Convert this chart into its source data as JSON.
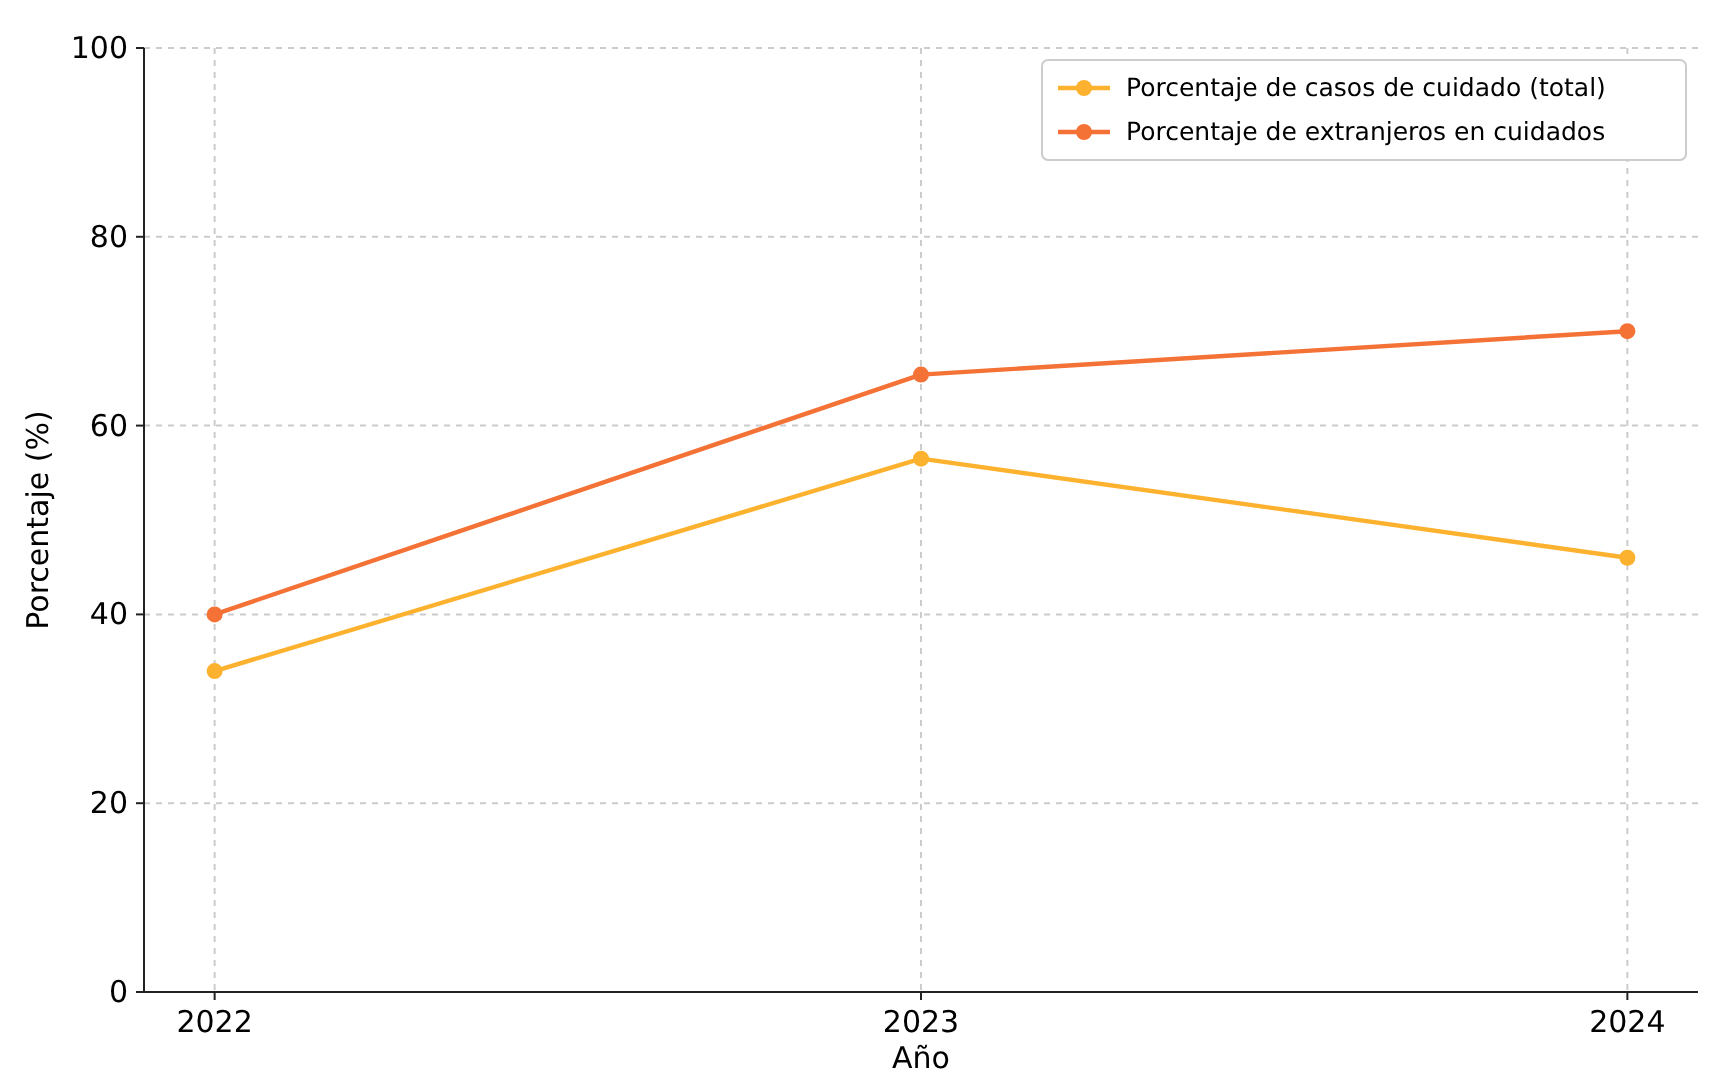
{
  "chart_data": {
    "type": "line",
    "xlabel": "Año",
    "ylabel": "Porcentaje (%)",
    "x": [
      2022,
      2023,
      2024
    ],
    "series": [
      {
        "name": "Porcentaje de casos de cuidado (total)",
        "color": "#fdb22f",
        "values": [
          34,
          56.5,
          46
        ]
      },
      {
        "name": "Porcentaje de extranjeros en cuidados",
        "color": "#f47236",
        "values": [
          40,
          65.4,
          70
        ]
      }
    ],
    "xlim": [
      2021.9,
      2024.1
    ],
    "xticks": [
      2022,
      2023,
      2024
    ],
    "ylim": [
      0,
      100
    ],
    "yticks": [
      0,
      20,
      40,
      60,
      80,
      100
    ],
    "grid": true,
    "legend": "top right",
    "marker": "circle",
    "line_style": "solid"
  }
}
